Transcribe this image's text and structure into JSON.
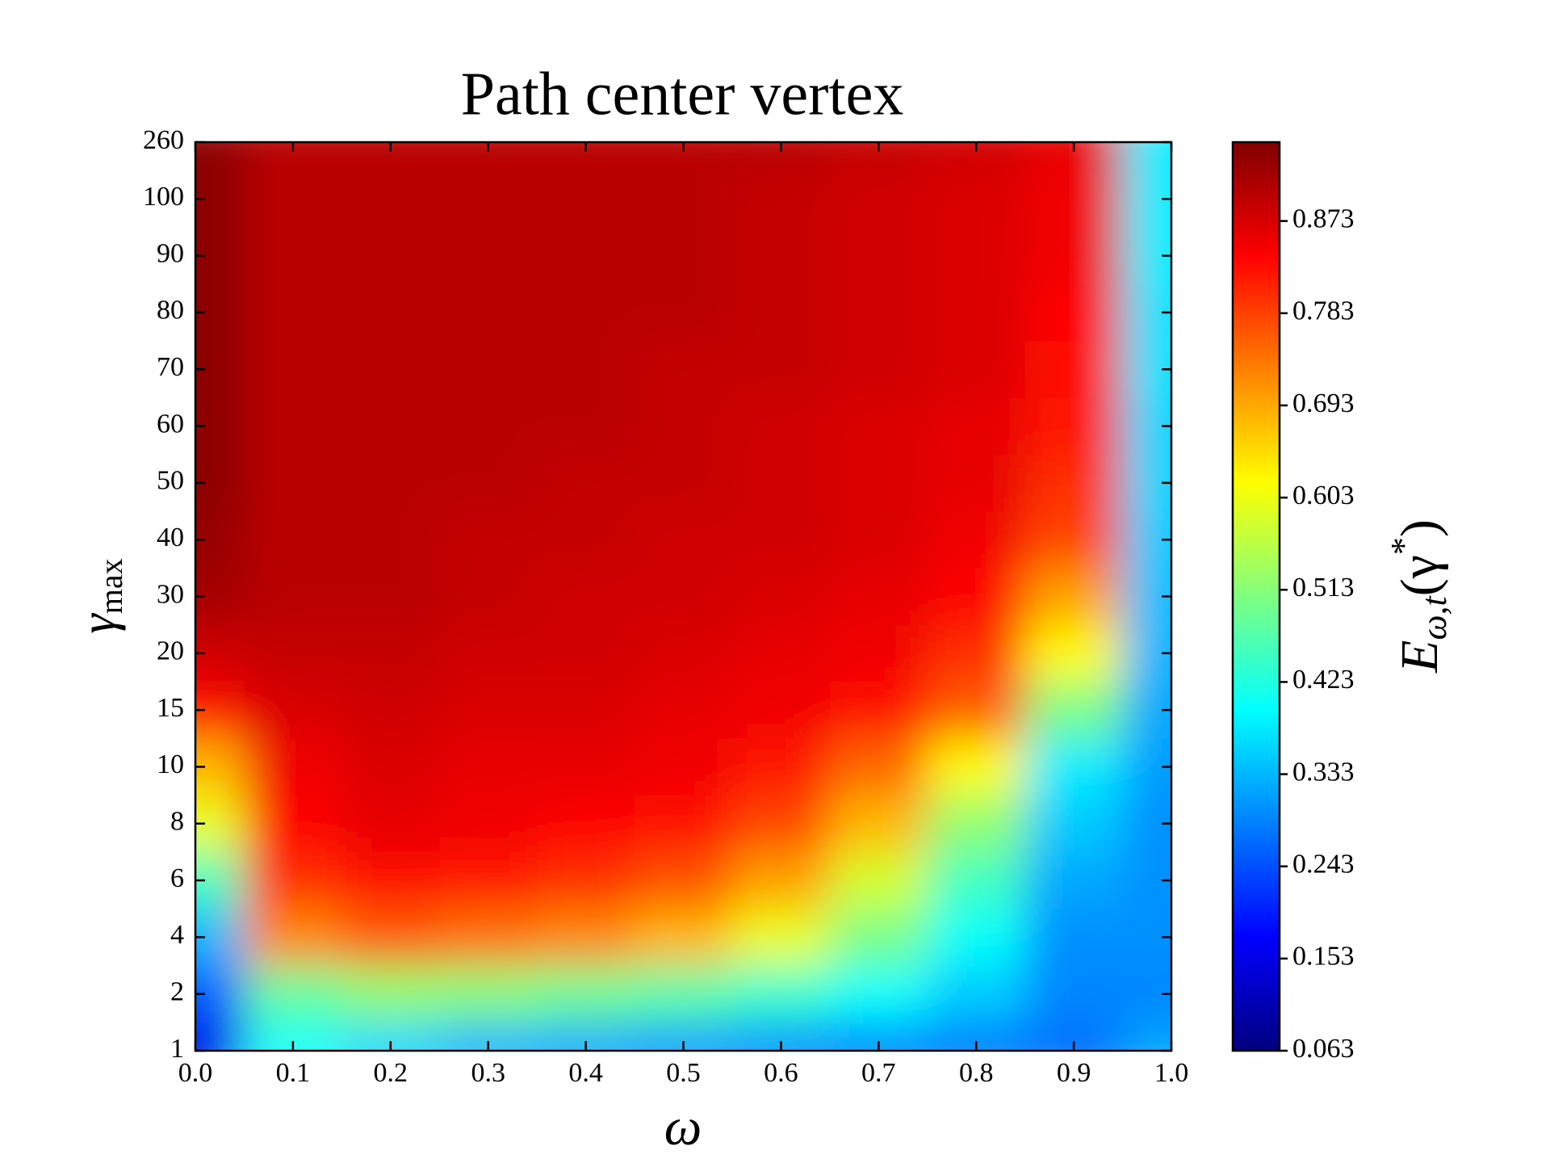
{
  "chart_data": {
    "type": "heatmap",
    "title": "Path center vertex",
    "x_label": "ω",
    "y_label": [
      "γ",
      "max"
    ],
    "colorbar_label": [
      "E",
      "ω,t",
      "(γ",
      "*",
      ")"
    ],
    "colorscale": "jet",
    "x": [
      0.0,
      0.1,
      0.2,
      0.3,
      0.4,
      0.5,
      0.6,
      0.7,
      0.8,
      0.9,
      1.0
    ],
    "xlim": [
      0.0,
      1.0
    ],
    "xticks": [
      {
        "value": 0.0,
        "label": "0.0"
      },
      0.1,
      0.2,
      0.3,
      0.4,
      0.5,
      0.6,
      0.7,
      0.8,
      0.9,
      {
        "value": 1.0,
        "label": "1.0"
      }
    ],
    "y_categories": [
      1,
      2,
      4,
      6,
      8,
      10,
      15,
      20,
      30,
      40,
      50,
      60,
      70,
      80,
      90,
      100,
      260
    ],
    "z": [
      [
        0.15,
        0.4,
        0.36,
        0.33,
        0.32,
        0.31,
        0.3,
        0.29,
        0.28,
        0.27,
        0.32
      ],
      [
        0.25,
        0.48,
        0.52,
        0.51,
        0.49,
        0.47,
        0.44,
        0.4,
        0.35,
        0.29,
        0.29
      ],
      [
        0.33,
        0.72,
        0.76,
        0.74,
        0.72,
        0.68,
        0.6,
        0.5,
        0.4,
        0.3,
        0.3
      ],
      [
        0.45,
        0.8,
        0.83,
        0.82,
        0.8,
        0.77,
        0.7,
        0.58,
        0.45,
        0.32,
        0.3
      ],
      [
        0.6,
        0.84,
        0.86,
        0.85,
        0.84,
        0.83,
        0.78,
        0.68,
        0.52,
        0.35,
        0.3
      ],
      [
        0.68,
        0.85,
        0.87,
        0.86,
        0.86,
        0.85,
        0.82,
        0.75,
        0.62,
        0.38,
        0.31
      ],
      [
        0.83,
        0.87,
        0.88,
        0.87,
        0.87,
        0.86,
        0.85,
        0.83,
        0.76,
        0.5,
        0.32
      ],
      [
        0.88,
        0.89,
        0.89,
        0.88,
        0.88,
        0.87,
        0.86,
        0.85,
        0.8,
        0.62,
        0.33
      ],
      [
        0.92,
        0.9,
        0.9,
        0.89,
        0.88,
        0.88,
        0.87,
        0.86,
        0.84,
        0.7,
        0.34
      ],
      [
        0.93,
        0.9,
        0.9,
        0.89,
        0.89,
        0.88,
        0.88,
        0.87,
        0.85,
        0.78,
        0.35
      ],
      [
        0.94,
        0.9,
        0.9,
        0.9,
        0.89,
        0.89,
        0.88,
        0.87,
        0.86,
        0.8,
        0.36
      ],
      [
        0.94,
        0.9,
        0.9,
        0.9,
        0.9,
        0.89,
        0.88,
        0.87,
        0.86,
        0.82,
        0.36
      ],
      [
        0.94,
        0.9,
        0.9,
        0.9,
        0.9,
        0.89,
        0.89,
        0.88,
        0.87,
        0.83,
        0.37
      ],
      [
        0.94,
        0.9,
        0.9,
        0.9,
        0.9,
        0.9,
        0.89,
        0.88,
        0.87,
        0.84,
        0.37
      ],
      [
        0.94,
        0.9,
        0.9,
        0.9,
        0.9,
        0.9,
        0.89,
        0.88,
        0.87,
        0.85,
        0.38
      ],
      [
        0.94,
        0.9,
        0.9,
        0.9,
        0.9,
        0.9,
        0.89,
        0.88,
        0.87,
        0.85,
        0.38
      ],
      [
        0.94,
        0.9,
        0.9,
        0.9,
        0.9,
        0.9,
        0.9,
        0.89,
        0.88,
        0.86,
        0.38
      ]
    ],
    "clim": [
      0.063,
      0.95
    ],
    "colorbar_ticks": [
      0.063,
      0.153,
      0.243,
      0.333,
      0.423,
      0.513,
      0.603,
      0.693,
      0.783,
      0.873
    ]
  }
}
